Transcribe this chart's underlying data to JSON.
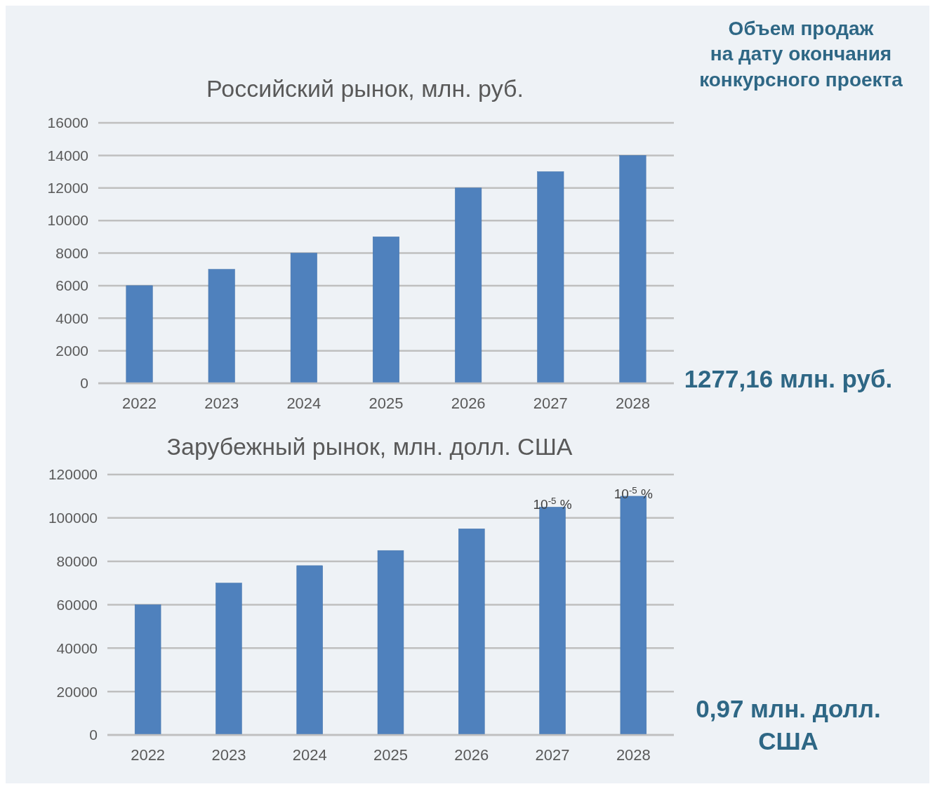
{
  "chart_data": [
    {
      "type": "bar",
      "title": "Российский рынок, млн. руб.",
      "categories": [
        "2022",
        "2023",
        "2024",
        "2025",
        "2026",
        "2027",
        "2028"
      ],
      "values": [
        6000,
        7000,
        8000,
        9000,
        12000,
        13000,
        14000
      ],
      "color": "#4f81bd",
      "ylim": [
        0,
        16000
      ],
      "yticks": [
        0,
        2000,
        4000,
        6000,
        8000,
        10000,
        12000,
        14000,
        16000
      ],
      "grid": "y",
      "annotations": [
        "Объем продаж\nна дату окончания\nконкурсного проекта",
        "1277,16 млн. руб."
      ]
    },
    {
      "type": "bar",
      "title": "Зарубежный рынок, млн. долл. США",
      "categories": [
        "2022",
        "2023",
        "2024",
        "2025",
        "2026",
        "2027",
        "2028"
      ],
      "values": [
        60000,
        70000,
        78000,
        85000,
        95000,
        105000,
        110000
      ],
      "color": "#4f81bd",
      "ylim": [
        0,
        120000
      ],
      "yticks": [
        0,
        20000,
        40000,
        60000,
        80000,
        100000,
        120000
      ],
      "grid": "y",
      "annotations": [
        {
          "text": "10$^{-5}$ %",
          "x": "2027",
          "y": 105000
        },
        {
          "text": "10$^{-5}$ %",
          "x": "2028",
          "y": 110000
        },
        "0,97 млн. долл.\nСША"
      ]
    }
  ]
}
